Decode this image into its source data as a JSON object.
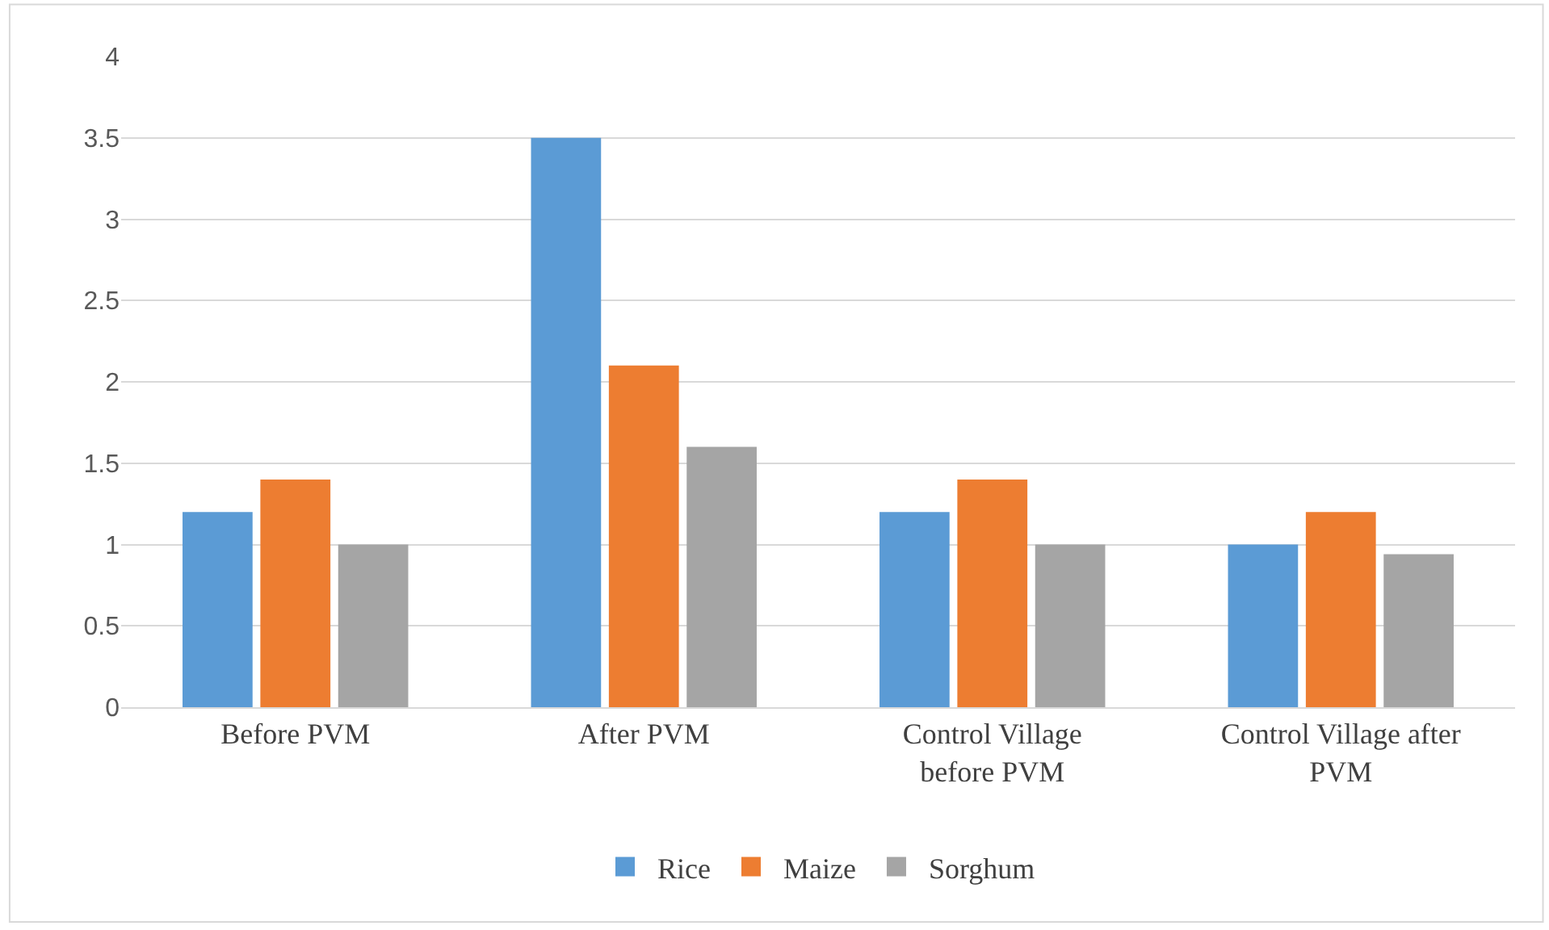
{
  "chart_data": {
    "type": "bar",
    "categories": [
      "Before PVM",
      "After PVM",
      "Control Village before PVM",
      "Control Village after PVM"
    ],
    "series": [
      {
        "name": "Rice",
        "color": "#5b9bd5",
        "values": [
          1.2,
          3.5,
          1.2,
          1.0
        ]
      },
      {
        "name": "Maize",
        "color": "#ed7d31",
        "values": [
          1.4,
          2.1,
          1.4,
          1.2
        ]
      },
      {
        "name": "Sorghum",
        "color": "#a5a5a5",
        "values": [
          1.0,
          1.6,
          1.0,
          0.94
        ]
      }
    ],
    "ylim": [
      0,
      4
    ],
    "yticks": [
      0,
      0.5,
      1,
      1.5,
      2,
      2.5,
      3,
      3.5,
      4
    ],
    "grid": "y",
    "legend": "bottom"
  }
}
